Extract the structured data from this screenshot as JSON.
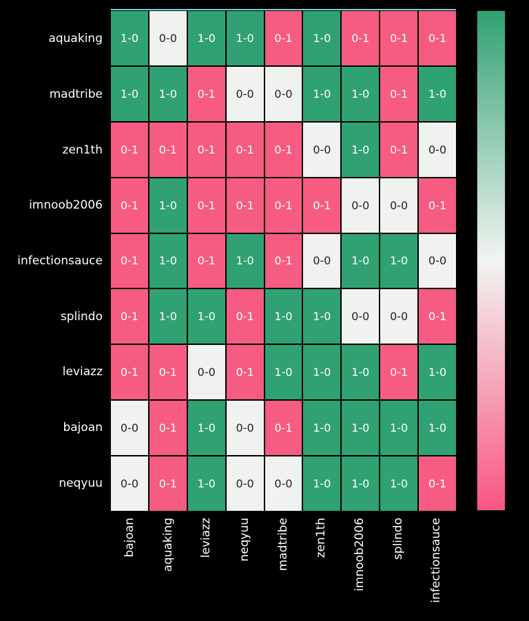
{
  "figure": {
    "background": "#000000",
    "top_spine_color": "#6fd6e0"
  },
  "chart_data": {
    "type": "heatmap",
    "title": "",
    "xlabel": "",
    "ylabel": "",
    "description": "Head-to-head results matrix: green cell = 1-0 win for row player vs column player, pink cell = 0-1 loss, light gray cell = 0-0",
    "rows": [
      "aquaking",
      "madtribe",
      "zen1th",
      "imnoob2006",
      "infectionsauce",
      "splindo",
      "leviazz",
      "bajoan",
      "neqyuu"
    ],
    "columns": [
      "bajoan",
      "aquaking",
      "leviazz",
      "neqyuu",
      "madtribe",
      "zen1th",
      "imnoob2006",
      "splindo",
      "infectionsauce"
    ],
    "cell_labels": [
      [
        "1-0",
        "0-0",
        "1-0",
        "1-0",
        "0-1",
        "1-0",
        "0-1",
        "0-1",
        "0-1"
      ],
      [
        "1-0",
        "1-0",
        "0-1",
        "0-0",
        "0-0",
        "1-0",
        "1-0",
        "0-1",
        "1-0"
      ],
      [
        "0-1",
        "0-1",
        "0-1",
        "0-1",
        "0-1",
        "0-0",
        "1-0",
        "0-1",
        "0-0"
      ],
      [
        "0-1",
        "1-0",
        "0-1",
        "0-1",
        "0-1",
        "0-1",
        "0-0",
        "0-0",
        "0-1"
      ],
      [
        "0-1",
        "1-0",
        "0-1",
        "1-0",
        "0-1",
        "0-0",
        "1-0",
        "1-0",
        "0-0"
      ],
      [
        "0-1",
        "1-0",
        "1-0",
        "0-1",
        "1-0",
        "1-0",
        "0-0",
        "0-0",
        "0-1"
      ],
      [
        "0-1",
        "0-1",
        "0-0",
        "0-1",
        "1-0",
        "1-0",
        "1-0",
        "0-1",
        "1-0"
      ],
      [
        "0-0",
        "0-1",
        "1-0",
        "0-0",
        "0-1",
        "1-0",
        "1-0",
        "1-0",
        "1-0"
      ],
      [
        "0-0",
        "0-1",
        "1-0",
        "0-0",
        "0-0",
        "1-0",
        "1-0",
        "1-0",
        "0-1"
      ]
    ],
    "cell_values": [
      [
        1,
        0,
        1,
        1,
        -1,
        1,
        -1,
        -1,
        -1
      ],
      [
        1,
        1,
        -1,
        0,
        0,
        1,
        1,
        -1,
        1
      ],
      [
        -1,
        -1,
        -1,
        -1,
        -1,
        0,
        1,
        -1,
        0
      ],
      [
        -1,
        1,
        -1,
        -1,
        -1,
        -1,
        0,
        0,
        -1
      ],
      [
        -1,
        1,
        -1,
        1,
        -1,
        0,
        1,
        1,
        0
      ],
      [
        -1,
        1,
        1,
        -1,
        1,
        1,
        0,
        0,
        -1
      ],
      [
        -1,
        -1,
        0,
        -1,
        1,
        1,
        1,
        -1,
        1
      ],
      [
        0,
        -1,
        1,
        0,
        -1,
        1,
        1,
        1,
        1
      ],
      [
        0,
        -1,
        1,
        0,
        0,
        1,
        1,
        1,
        -1
      ]
    ],
    "value_range": [
      -1,
      1
    ],
    "grid": "on",
    "colors": {
      "win": "#30a173",
      "draw": "#f0f2ef",
      "loss": "#f65c82",
      "text_on_color": "#ffffff",
      "text_on_draw": "#1f1f1f",
      "label_text": "#ffffff",
      "grid_line": "#000000"
    },
    "colorbar": {
      "orientation": "vertical",
      "position": "right",
      "top_color": "#30a173",
      "mid_color": "#f2f4f1",
      "bottom_color": "#f95581",
      "tick_labels": []
    }
  }
}
